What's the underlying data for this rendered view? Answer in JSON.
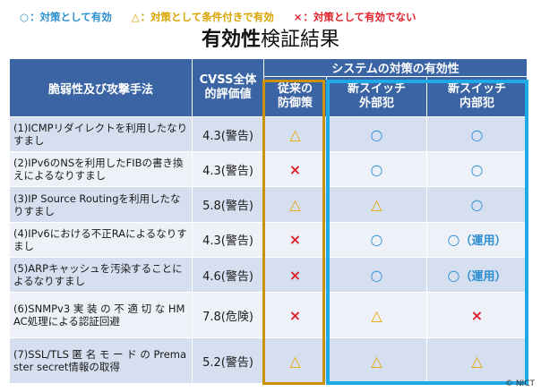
{
  "legend": [
    {
      "symbol": "○",
      "text": "：対策として有効",
      "status": "good"
    },
    {
      "symbol": "△",
      "text": "：対策として条件付きで有効",
      "status": "cond"
    },
    {
      "symbol": "×",
      "text": "：対策として有効でない",
      "status": "bad"
    }
  ],
  "title": {
    "strong": "有効性",
    "rest": "検証結果"
  },
  "table": {
    "headers": {
      "vuln": "脆弱性及び攻撃手法",
      "cvss_line1": "CVSS全体",
      "cvss_line2": "的評価値",
      "system": "システムの対策の有効性",
      "legacy_line1": "従来の",
      "legacy_line2": "防御策",
      "ext_line1": "新スイッチ",
      "ext_line2": "外部犯",
      "int_line1": "新スイッチ",
      "int_line2": "内部犯"
    },
    "rows": [
      {
        "vuln": "(1)ICMPリダイレクトを利用したなりすまし",
        "cvss": "4.3(警告)",
        "legacy": "△",
        "ext": "○",
        "int": "○",
        "int_note": ""
      },
      {
        "vuln": "(2)IPv6のNSを利用したFIBの書き換えによるなりすまし",
        "cvss": "4.3(警告)",
        "legacy": "×",
        "ext": "○",
        "int": "○",
        "int_note": ""
      },
      {
        "vuln": "(3)IP Source Routingを利用したなりすまし",
        "cvss": "5.8(警告)",
        "legacy": "△",
        "ext": "△",
        "int": "○",
        "int_note": ""
      },
      {
        "vuln": "(4)IPv6における不正RAによるなりすまし",
        "cvss": "4.3(警告)",
        "legacy": "×",
        "ext": "○",
        "int": "○",
        "int_note": "（運用）"
      },
      {
        "vuln": "(5)ARPキャッシュを汚染することによるなりすまし",
        "cvss": "4.6(警告)",
        "legacy": "×",
        "ext": "○",
        "int": "○",
        "int_note": "（運用）"
      },
      {
        "vuln": "(6)SNMPv3 実 装 の 不 適 切 な HMAC処理による認証回避",
        "cvss": "7.8(危険)",
        "legacy": "×",
        "ext": "△",
        "int": "×",
        "int_note": ""
      },
      {
        "vuln": "(7)SSL/TLS 匿 名 モ ー ド の Premaster secret情報の取得",
        "cvss": "5.2(警告)",
        "legacy": "△",
        "ext": "△",
        "int": "△",
        "int_note": ""
      }
    ]
  },
  "colors": {
    "header_bg": "#3b64a4",
    "row_odd": "#d6dfef",
    "row_even": "#eef2f8",
    "good": "#2e8fd0",
    "cond": "#e8a800",
    "bad": "#e0202a",
    "legacy_frame": "#c9920a",
    "new_frame": "#1eaae6"
  },
  "copyright": "© NICT"
}
